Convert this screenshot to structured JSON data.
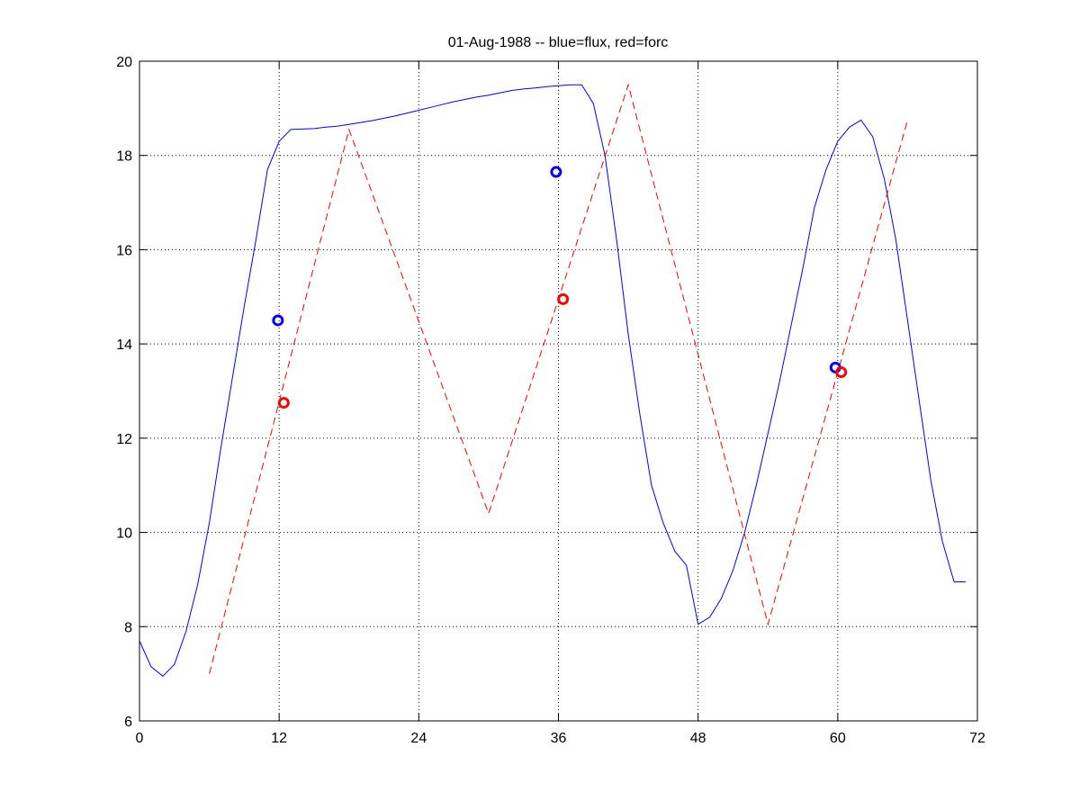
{
  "chart_data": {
    "type": "line",
    "title": "01-Aug-1988 -- blue=flux, red=forc",
    "xlabel": "",
    "ylabel": "",
    "xlim": [
      0,
      72
    ],
    "ylim": [
      6,
      20
    ],
    "xticks": [
      0,
      12,
      24,
      36,
      48,
      60,
      72
    ],
    "yticks": [
      6,
      8,
      10,
      12,
      14,
      16,
      18,
      20
    ],
    "grid": true,
    "colors": {
      "flux": "#0000ff",
      "forc": "#ff0000"
    },
    "series": [
      {
        "key": "flux",
        "style": "solid",
        "x": [
          0,
          1,
          2,
          3,
          4,
          5,
          6,
          7,
          8,
          9,
          10,
          11,
          12,
          13,
          14,
          15,
          16,
          17,
          18,
          19,
          20,
          21,
          22,
          23,
          24,
          25,
          26,
          27,
          28,
          29,
          30,
          31,
          32,
          33,
          34,
          35,
          36,
          37,
          38,
          39,
          40,
          41,
          42,
          43,
          44,
          45,
          46,
          47,
          48,
          49,
          50,
          51,
          52,
          53,
          54,
          55,
          56,
          57,
          58,
          59,
          60,
          61,
          62,
          63,
          64,
          65,
          66,
          67,
          68,
          69,
          70,
          71
        ],
        "y": [
          7.7,
          7.15,
          6.95,
          7.2,
          7.9,
          8.9,
          10.2,
          11.8,
          13.3,
          14.8,
          16.2,
          17.7,
          18.3,
          18.55,
          18.56,
          18.57,
          18.6,
          18.62,
          18.66,
          18.7,
          18.74,
          18.79,
          18.84,
          18.9,
          18.96,
          19.02,
          19.08,
          19.14,
          19.19,
          19.24,
          19.28,
          19.33,
          19.38,
          19.41,
          19.43,
          19.46,
          19.48,
          19.5,
          19.5,
          19.1,
          18.0,
          16.2,
          14.2,
          12.5,
          11.0,
          10.2,
          9.6,
          9.3,
          8.05,
          8.2,
          8.6,
          9.2,
          10.0,
          11.0,
          12.1,
          13.2,
          14.4,
          15.6,
          16.9,
          17.7,
          18.3,
          18.6,
          18.75,
          18.4,
          17.5,
          16.2,
          14.5,
          12.8,
          11.1,
          9.8,
          8.95,
          8.95
        ],
        "markers": [
          {
            "x": 11.9,
            "y": 14.5
          },
          {
            "x": 35.8,
            "y": 17.65
          },
          {
            "x": 59.8,
            "y": 13.5
          }
        ]
      },
      {
        "key": "forc",
        "style": "dashed",
        "x": [
          6,
          18,
          30,
          42,
          54,
          66
        ],
        "y": [
          7.0,
          18.55,
          10.4,
          19.5,
          8.05,
          18.75
        ],
        "markers": [
          {
            "x": 12.4,
            "y": 12.75
          },
          {
            "x": 36.4,
            "y": 14.95
          },
          {
            "x": 60.3,
            "y": 13.4
          }
        ]
      }
    ]
  }
}
